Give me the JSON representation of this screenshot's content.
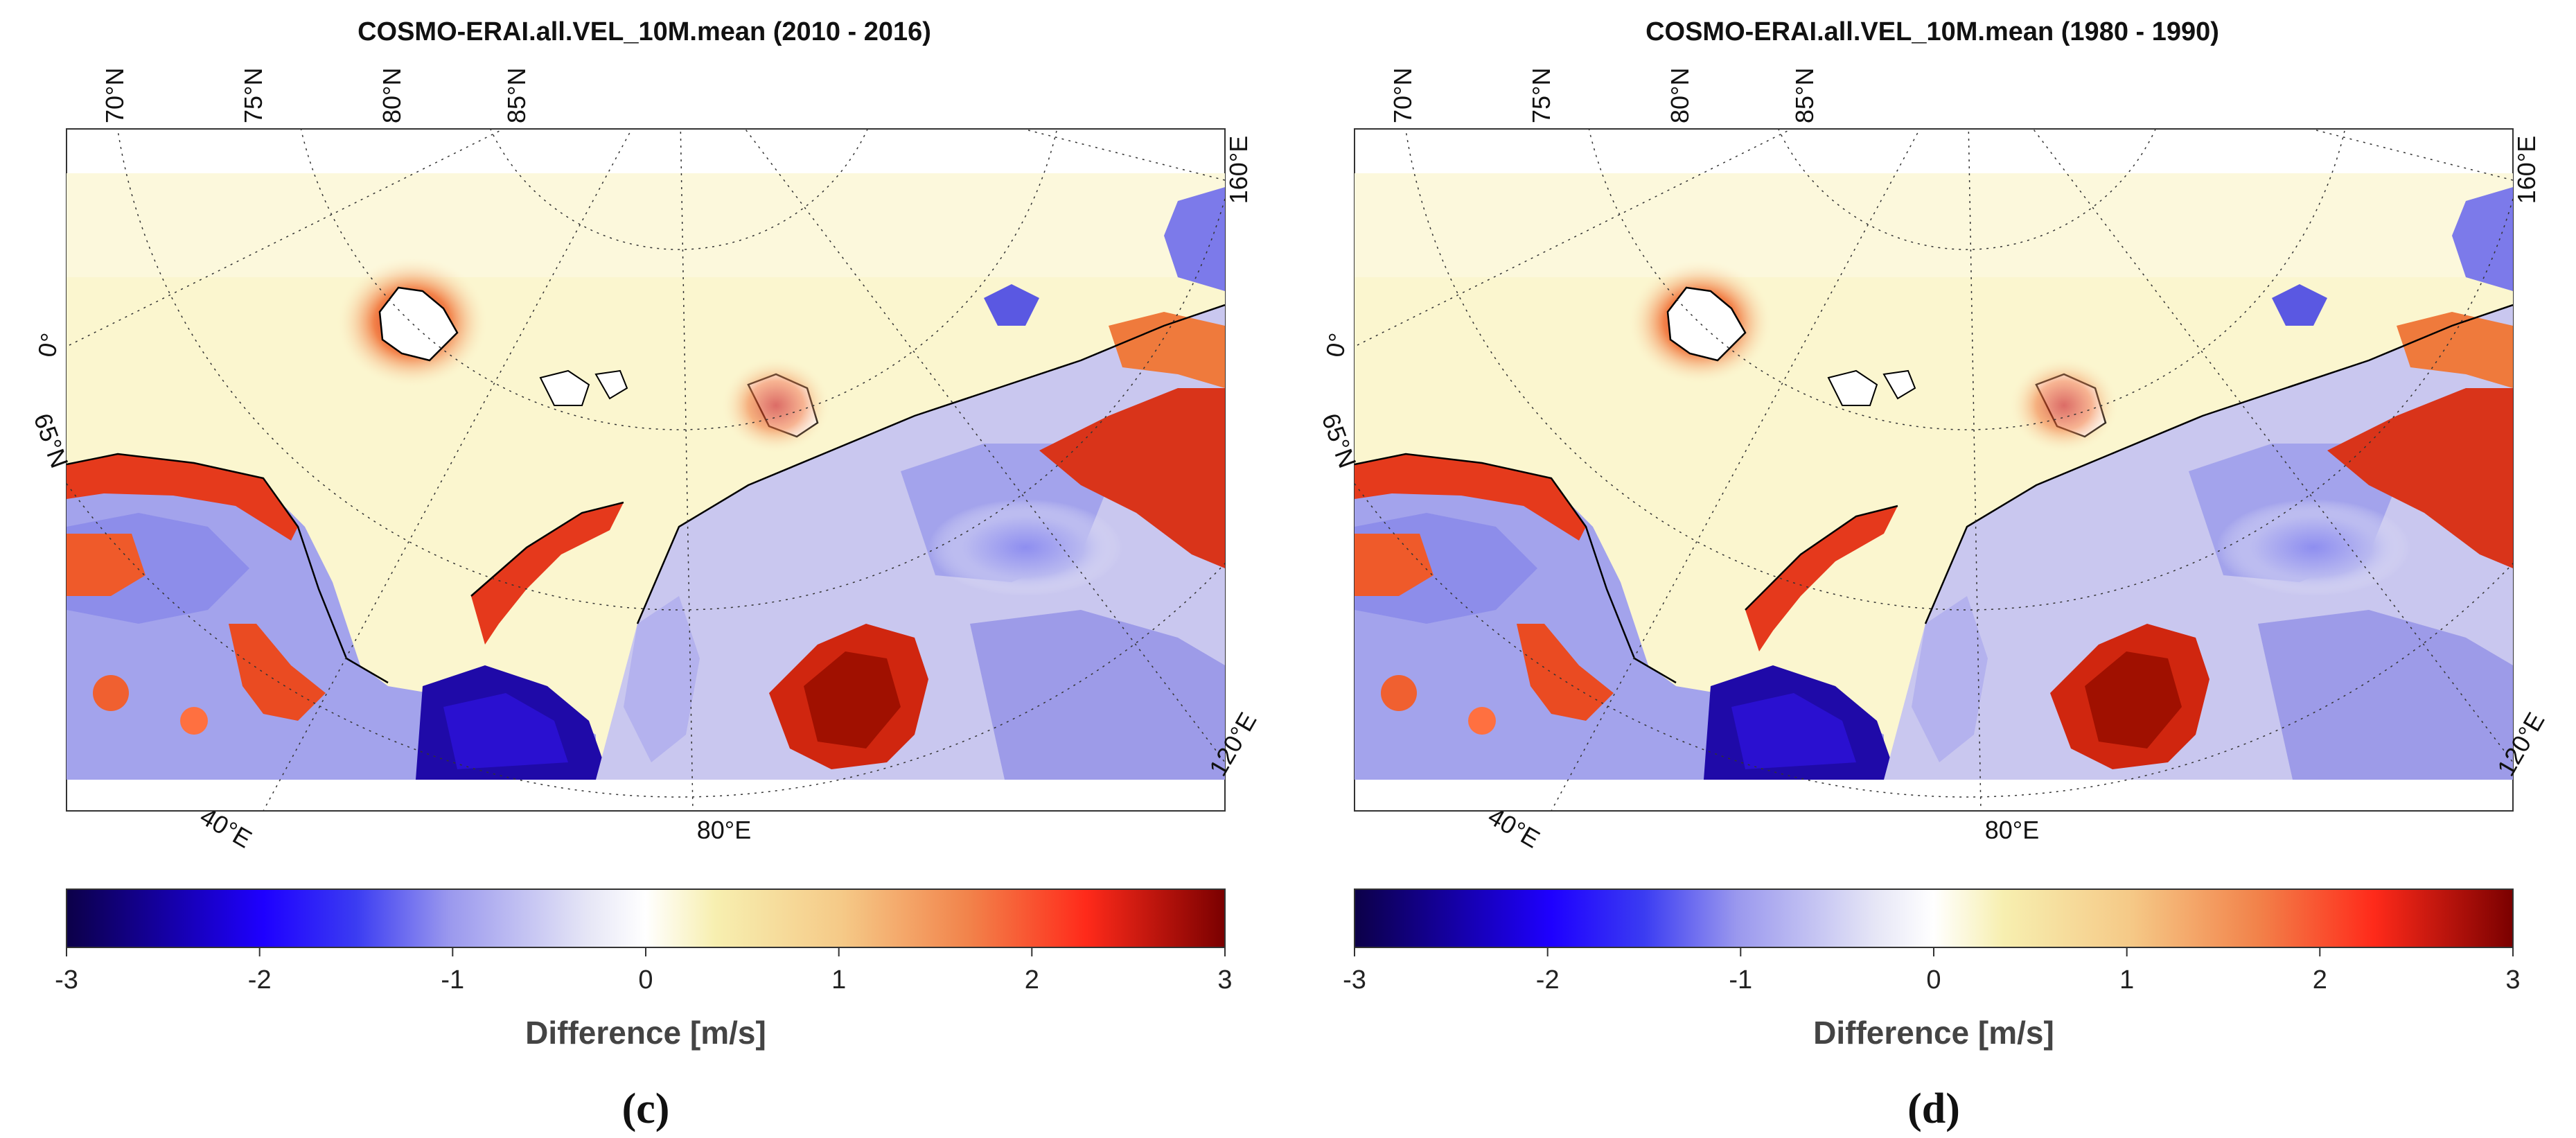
{
  "colors": {
    "neutral": "#fbf6cf",
    "scale": [
      "#0c0048",
      "#1e00ff",
      "#9a98ee",
      "#ffffff",
      "#f7efb0",
      "#f2a35a",
      "#ff2a1a",
      "#7a0000"
    ]
  },
  "panels": [
    {
      "id": "c",
      "title": "COSMO-ERAI.all.VEL_10M.mean (2010 - 2016)",
      "lat_labels": [
        "70°N",
        "75°N",
        "80°N",
        "85°N"
      ],
      "side_labels": [
        "0°",
        "65°N"
      ],
      "lon_labels_right": [
        "160°E",
        "120°E"
      ],
      "lon_labels_bottom": [
        "40°E",
        "80°E"
      ],
      "colorbar": {
        "ticks": [
          "-3",
          "-2",
          "-1",
          "0",
          "1",
          "2",
          "3"
        ],
        "min": -3,
        "max": 3,
        "label": "Difference [m/s]"
      },
      "panel_label": "(c)"
    },
    {
      "id": "d",
      "title": "COSMO-ERAI.all.VEL_10M.mean (1980 - 1990)",
      "lat_labels": [
        "70°N",
        "75°N",
        "80°N",
        "85°N"
      ],
      "side_labels": [
        "0°",
        "65°N"
      ],
      "lon_labels_right": [
        "160°E",
        "120°E"
      ],
      "lon_labels_bottom": [
        "40°E",
        "80°E"
      ],
      "colorbar": {
        "ticks": [
          "-3",
          "-2",
          "-1",
          "0",
          "1",
          "2",
          "3"
        ],
        "min": -3,
        "max": 3,
        "label": "Difference [m/s]"
      },
      "panel_label": "(d)"
    }
  ]
}
